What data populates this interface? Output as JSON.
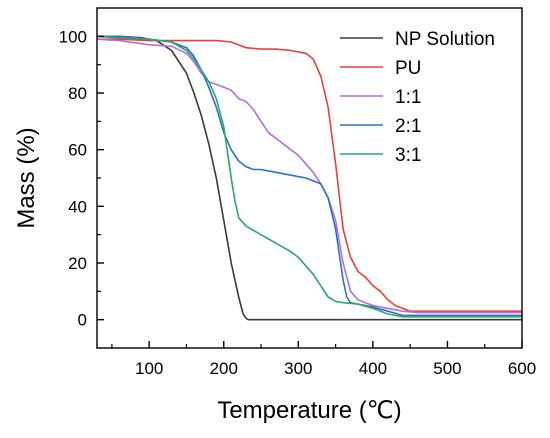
{
  "chart_data": {
    "type": "line",
    "title": "",
    "xlabel": "Temperature (℃)",
    "ylabel": "Mass (%)",
    "xlim": [
      30,
      600
    ],
    "ylim": [
      -10,
      110
    ],
    "xticks": [
      100,
      200,
      300,
      400,
      500,
      600
    ],
    "yticks": [
      0,
      20,
      40,
      60,
      80,
      100
    ],
    "grid": false,
    "legend": "top-right",
    "series": [
      {
        "name": "NP Solution",
        "color": "#3a3a3a",
        "x": [
          30,
          60,
          90,
          110,
          130,
          150,
          160,
          170,
          180,
          190,
          200,
          210,
          220,
          226,
          230,
          233,
          240,
          300,
          400,
          500,
          600
        ],
        "y": [
          100,
          100,
          99.5,
          98.5,
          95,
          87,
          80,
          72,
          62,
          50,
          35,
          20,
          8,
          2,
          0.5,
          0,
          0,
          0,
          0,
          0,
          0
        ]
      },
      {
        "name": "PU",
        "color": "#e8403f",
        "x": [
          30,
          60,
          100,
          150,
          190,
          210,
          230,
          250,
          270,
          290,
          310,
          320,
          330,
          340,
          350,
          360,
          370,
          380,
          390,
          400,
          410,
          420,
          430,
          450,
          500,
          600
        ],
        "y": [
          99,
          99,
          98.5,
          98.5,
          98.5,
          98,
          96,
          95.5,
          95.5,
          95,
          94,
          92,
          86,
          75,
          55,
          32,
          22,
          17,
          15,
          12,
          10,
          7,
          5,
          3,
          3,
          3
        ]
      },
      {
        "name": "1:1",
        "color": "#b56fd8",
        "x": [
          30,
          60,
          100,
          130,
          150,
          160,
          170,
          180,
          190,
          200,
          210,
          220,
          230,
          240,
          250,
          260,
          270,
          280,
          290,
          300,
          310,
          320,
          330,
          340,
          350,
          360,
          370,
          380,
          390,
          400,
          420,
          440,
          460,
          500,
          600
        ],
        "y": [
          99,
          98.5,
          97,
          96.5,
          94,
          91,
          87,
          84,
          83,
          82,
          81,
          78,
          77,
          74,
          70,
          66,
          64,
          62,
          60,
          58,
          55,
          52,
          48,
          43,
          35,
          20,
          10,
          7,
          6,
          5,
          4,
          3,
          2.5,
          2.5,
          2.5
        ]
      },
      {
        "name": "2:1",
        "color": "#2f6ecb",
        "x": [
          30,
          60,
          100,
          130,
          150,
          160,
          170,
          180,
          190,
          200,
          210,
          220,
          230,
          240,
          250,
          270,
          290,
          310,
          330,
          340,
          350,
          360,
          365,
          370,
          380,
          400,
          420,
          440,
          500,
          600
        ],
        "y": [
          100,
          100,
          99,
          98,
          96,
          93,
          88,
          82,
          75,
          66,
          60,
          56,
          54,
          53,
          53,
          52,
          51,
          50,
          48,
          43,
          32,
          14,
          8,
          6,
          5.5,
          4.5,
          3,
          1.5,
          1.5,
          1.5
        ]
      },
      {
        "name": "3:1",
        "color": "#2fa66a",
        "x": [
          30,
          60,
          100,
          130,
          150,
          160,
          170,
          180,
          190,
          200,
          210,
          215,
          220,
          230,
          250,
          270,
          290,
          300,
          310,
          320,
          330,
          340,
          350,
          360,
          380,
          400,
          420,
          440,
          500,
          600
        ],
        "y": [
          100,
          99.5,
          99,
          98,
          95,
          92,
          88,
          84,
          78,
          68,
          50,
          42,
          36,
          33,
          30,
          27,
          24,
          22,
          19,
          16,
          12,
          8,
          6.5,
          6,
          5.5,
          4,
          2,
          1,
          1,
          1
        ]
      }
    ]
  }
}
